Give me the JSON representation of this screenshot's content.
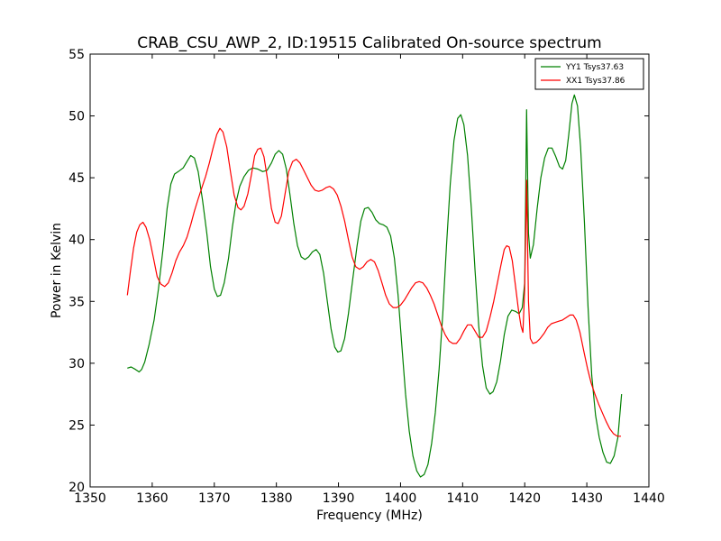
{
  "chart_data": {
    "type": "line",
    "title": "CRAB_CSU_AWP_2, ID:19515 Calibrated On-source spectrum",
    "xlabel": "Frequency (MHz)",
    "ylabel": "Power in Kelvin",
    "xlim": [
      1350,
      1440
    ],
    "ylim": [
      20,
      55
    ],
    "xticks": [
      "1350",
      "1360",
      "1370",
      "1380",
      "1390",
      "1400",
      "1410",
      "1420",
      "1430",
      "1440"
    ],
    "yticks": [
      "20",
      "25",
      "30",
      "35",
      "40",
      "45",
      "50",
      "55"
    ],
    "grid": false,
    "legend_position": "top-right",
    "series": [
      {
        "name": "YY1 Tsys37.63",
        "color": "#008000",
        "points": [
          [
            1356.0,
            29.6
          ],
          [
            1356.6,
            29.7
          ],
          [
            1357.3,
            29.5
          ],
          [
            1357.9,
            29.3
          ],
          [
            1358.3,
            29.5
          ],
          [
            1358.8,
            30.1
          ],
          [
            1359.5,
            31.5
          ],
          [
            1360.3,
            33.5
          ],
          [
            1361.0,
            36.0
          ],
          [
            1361.8,
            39.5
          ],
          [
            1362.4,
            42.5
          ],
          [
            1363.0,
            44.5
          ],
          [
            1363.6,
            45.3
          ],
          [
            1364.2,
            45.5
          ],
          [
            1365.0,
            45.8
          ],
          [
            1365.7,
            46.4
          ],
          [
            1366.2,
            46.8
          ],
          [
            1366.8,
            46.6
          ],
          [
            1367.4,
            45.5
          ],
          [
            1368.1,
            43.2
          ],
          [
            1368.8,
            40.5
          ],
          [
            1369.4,
            37.8
          ],
          [
            1370.0,
            36.0
          ],
          [
            1370.5,
            35.4
          ],
          [
            1371.0,
            35.5
          ],
          [
            1371.6,
            36.5
          ],
          [
            1372.3,
            38.5
          ],
          [
            1372.9,
            41.0
          ],
          [
            1373.5,
            43.0
          ],
          [
            1374.1,
            44.3
          ],
          [
            1374.8,
            45.1
          ],
          [
            1375.5,
            45.6
          ],
          [
            1376.2,
            45.8
          ],
          [
            1377.0,
            45.7
          ],
          [
            1377.8,
            45.5
          ],
          [
            1378.5,
            45.6
          ],
          [
            1379.2,
            46.2
          ],
          [
            1379.8,
            46.9
          ],
          [
            1380.4,
            47.2
          ],
          [
            1381.0,
            46.9
          ],
          [
            1381.6,
            45.7
          ],
          [
            1382.2,
            43.6
          ],
          [
            1382.8,
            41.3
          ],
          [
            1383.4,
            39.5
          ],
          [
            1384.0,
            38.6
          ],
          [
            1384.6,
            38.4
          ],
          [
            1385.2,
            38.6
          ],
          [
            1385.8,
            39.0
          ],
          [
            1386.4,
            39.2
          ],
          [
            1387.0,
            38.8
          ],
          [
            1387.6,
            37.3
          ],
          [
            1388.2,
            35.0
          ],
          [
            1388.8,
            32.8
          ],
          [
            1389.4,
            31.3
          ],
          [
            1389.9,
            30.9
          ],
          [
            1390.4,
            31.0
          ],
          [
            1391.0,
            32.0
          ],
          [
            1391.6,
            34.0
          ],
          [
            1392.3,
            36.8
          ],
          [
            1393.0,
            39.5
          ],
          [
            1393.6,
            41.5
          ],
          [
            1394.2,
            42.5
          ],
          [
            1394.8,
            42.6
          ],
          [
            1395.4,
            42.2
          ],
          [
            1396.0,
            41.6
          ],
          [
            1396.6,
            41.3
          ],
          [
            1397.2,
            41.2
          ],
          [
            1397.8,
            41.0
          ],
          [
            1398.4,
            40.3
          ],
          [
            1399.0,
            38.5
          ],
          [
            1399.6,
            35.5
          ],
          [
            1400.2,
            31.5
          ],
          [
            1400.8,
            27.5
          ],
          [
            1401.4,
            24.5
          ],
          [
            1402.0,
            22.5
          ],
          [
            1402.6,
            21.3
          ],
          [
            1403.2,
            20.8
          ],
          [
            1403.8,
            21.0
          ],
          [
            1404.4,
            21.8
          ],
          [
            1405.0,
            23.5
          ],
          [
            1405.6,
            26.0
          ],
          [
            1406.2,
            29.5
          ],
          [
            1406.8,
            34.0
          ],
          [
            1407.4,
            39.5
          ],
          [
            1408.0,
            44.5
          ],
          [
            1408.6,
            48.0
          ],
          [
            1409.2,
            49.8
          ],
          [
            1409.7,
            50.1
          ],
          [
            1410.2,
            49.3
          ],
          [
            1410.8,
            46.8
          ],
          [
            1411.4,
            42.5
          ],
          [
            1412.0,
            37.5
          ],
          [
            1412.6,
            33.0
          ],
          [
            1413.2,
            29.8
          ],
          [
            1413.8,
            28.0
          ],
          [
            1414.4,
            27.5
          ],
          [
            1414.9,
            27.7
          ],
          [
            1415.5,
            28.5
          ],
          [
            1416.1,
            30.2
          ],
          [
            1416.7,
            32.3
          ],
          [
            1417.3,
            33.8
          ],
          [
            1417.9,
            34.3
          ],
          [
            1418.5,
            34.2
          ],
          [
            1419.1,
            34.0
          ],
          [
            1419.6,
            34.5
          ],
          [
            1420.0,
            36.5
          ],
          [
            1420.3,
            50.5
          ],
          [
            1420.6,
            40.5
          ],
          [
            1420.9,
            38.5
          ],
          [
            1421.4,
            39.6
          ],
          [
            1422.0,
            42.5
          ],
          [
            1422.6,
            45.0
          ],
          [
            1423.2,
            46.6
          ],
          [
            1423.8,
            47.4
          ],
          [
            1424.4,
            47.4
          ],
          [
            1425.0,
            46.7
          ],
          [
            1425.6,
            45.9
          ],
          [
            1426.1,
            45.7
          ],
          [
            1426.6,
            46.4
          ],
          [
            1427.1,
            48.5
          ],
          [
            1427.6,
            51.0
          ],
          [
            1428.0,
            51.7
          ],
          [
            1428.5,
            50.8
          ],
          [
            1429.0,
            47.5
          ],
          [
            1429.6,
            41.5
          ],
          [
            1430.2,
            34.5
          ],
          [
            1430.8,
            29.0
          ],
          [
            1431.4,
            25.8
          ],
          [
            1432.0,
            24.0
          ],
          [
            1432.6,
            22.8
          ],
          [
            1433.2,
            22.0
          ],
          [
            1433.8,
            21.9
          ],
          [
            1434.4,
            22.5
          ],
          [
            1435.0,
            24.0
          ],
          [
            1435.6,
            27.5
          ]
        ]
      },
      {
        "name": "XX1 Tsys37.86",
        "color": "#ff0000",
        "points": [
          [
            1356.0,
            35.5
          ],
          [
            1356.5,
            37.5
          ],
          [
            1357.0,
            39.3
          ],
          [
            1357.5,
            40.6
          ],
          [
            1358.0,
            41.2
          ],
          [
            1358.5,
            41.4
          ],
          [
            1359.0,
            41.0
          ],
          [
            1359.6,
            40.0
          ],
          [
            1360.2,
            38.5
          ],
          [
            1360.8,
            37.0
          ],
          [
            1361.4,
            36.4
          ],
          [
            1362.0,
            36.2
          ],
          [
            1362.6,
            36.5
          ],
          [
            1363.2,
            37.3
          ],
          [
            1363.8,
            38.3
          ],
          [
            1364.4,
            39.0
          ],
          [
            1365.0,
            39.5
          ],
          [
            1365.6,
            40.2
          ],
          [
            1366.2,
            41.2
          ],
          [
            1366.8,
            42.3
          ],
          [
            1367.4,
            43.3
          ],
          [
            1368.0,
            44.2
          ],
          [
            1368.6,
            45.1
          ],
          [
            1369.2,
            46.2
          ],
          [
            1369.8,
            47.4
          ],
          [
            1370.4,
            48.5
          ],
          [
            1370.9,
            49.0
          ],
          [
            1371.4,
            48.7
          ],
          [
            1372.0,
            47.5
          ],
          [
            1372.6,
            45.5
          ],
          [
            1373.2,
            43.6
          ],
          [
            1373.8,
            42.6
          ],
          [
            1374.3,
            42.4
          ],
          [
            1374.8,
            42.7
          ],
          [
            1375.4,
            43.7
          ],
          [
            1376.0,
            45.3
          ],
          [
            1376.5,
            46.8
          ],
          [
            1377.0,
            47.3
          ],
          [
            1377.5,
            47.4
          ],
          [
            1378.0,
            46.7
          ],
          [
            1378.6,
            44.8
          ],
          [
            1379.2,
            42.5
          ],
          [
            1379.8,
            41.4
          ],
          [
            1380.3,
            41.3
          ],
          [
            1380.8,
            41.9
          ],
          [
            1381.4,
            43.7
          ],
          [
            1382.0,
            45.5
          ],
          [
            1382.6,
            46.3
          ],
          [
            1383.2,
            46.5
          ],
          [
            1383.8,
            46.2
          ],
          [
            1384.4,
            45.6
          ],
          [
            1385.0,
            45.0
          ],
          [
            1385.6,
            44.4
          ],
          [
            1386.2,
            44.0
          ],
          [
            1386.8,
            43.9
          ],
          [
            1387.4,
            44.0
          ],
          [
            1388.0,
            44.2
          ],
          [
            1388.6,
            44.3
          ],
          [
            1389.2,
            44.1
          ],
          [
            1389.8,
            43.6
          ],
          [
            1390.4,
            42.7
          ],
          [
            1391.0,
            41.5
          ],
          [
            1391.6,
            40.0
          ],
          [
            1392.2,
            38.6
          ],
          [
            1392.8,
            37.8
          ],
          [
            1393.4,
            37.6
          ],
          [
            1394.0,
            37.8
          ],
          [
            1394.6,
            38.2
          ],
          [
            1395.2,
            38.4
          ],
          [
            1395.8,
            38.2
          ],
          [
            1396.4,
            37.5
          ],
          [
            1397.0,
            36.5
          ],
          [
            1397.6,
            35.5
          ],
          [
            1398.2,
            34.8
          ],
          [
            1398.8,
            34.5
          ],
          [
            1399.4,
            34.5
          ],
          [
            1400.0,
            34.7
          ],
          [
            1400.6,
            35.1
          ],
          [
            1401.2,
            35.6
          ],
          [
            1401.8,
            36.1
          ],
          [
            1402.4,
            36.5
          ],
          [
            1403.0,
            36.6
          ],
          [
            1403.6,
            36.5
          ],
          [
            1404.2,
            36.1
          ],
          [
            1404.8,
            35.5
          ],
          [
            1405.4,
            34.8
          ],
          [
            1406.0,
            33.9
          ],
          [
            1406.6,
            33.0
          ],
          [
            1407.2,
            32.3
          ],
          [
            1407.8,
            31.8
          ],
          [
            1408.4,
            31.6
          ],
          [
            1409.0,
            31.6
          ],
          [
            1409.6,
            32.0
          ],
          [
            1410.2,
            32.6
          ],
          [
            1410.8,
            33.1
          ],
          [
            1411.4,
            33.1
          ],
          [
            1412.0,
            32.6
          ],
          [
            1412.6,
            32.1
          ],
          [
            1413.2,
            32.1
          ],
          [
            1413.8,
            32.6
          ],
          [
            1414.4,
            33.7
          ],
          [
            1415.0,
            35.0
          ],
          [
            1415.6,
            36.5
          ],
          [
            1416.2,
            38.0
          ],
          [
            1416.7,
            39.2
          ],
          [
            1417.1,
            39.5
          ],
          [
            1417.5,
            39.4
          ],
          [
            1418.0,
            38.3
          ],
          [
            1418.5,
            36.3
          ],
          [
            1419.0,
            34.3
          ],
          [
            1419.4,
            33.0
          ],
          [
            1419.7,
            32.5
          ],
          [
            1420.0,
            36.0
          ],
          [
            1420.3,
            44.8
          ],
          [
            1420.6,
            35.0
          ],
          [
            1420.9,
            32.0
          ],
          [
            1421.3,
            31.6
          ],
          [
            1421.9,
            31.7
          ],
          [
            1422.5,
            32.0
          ],
          [
            1423.1,
            32.4
          ],
          [
            1423.7,
            32.9
          ],
          [
            1424.3,
            33.2
          ],
          [
            1424.9,
            33.3
          ],
          [
            1425.5,
            33.4
          ],
          [
            1426.1,
            33.5
          ],
          [
            1426.7,
            33.7
          ],
          [
            1427.3,
            33.9
          ],
          [
            1427.8,
            33.9
          ],
          [
            1428.3,
            33.5
          ],
          [
            1428.9,
            32.5
          ],
          [
            1429.5,
            31.0
          ],
          [
            1430.1,
            29.6
          ],
          [
            1430.7,
            28.4
          ],
          [
            1431.3,
            27.5
          ],
          [
            1431.9,
            26.7
          ],
          [
            1432.5,
            26.0
          ],
          [
            1433.1,
            25.3
          ],
          [
            1433.7,
            24.7
          ],
          [
            1434.3,
            24.3
          ],
          [
            1434.9,
            24.1
          ],
          [
            1435.5,
            24.1
          ]
        ]
      }
    ]
  }
}
